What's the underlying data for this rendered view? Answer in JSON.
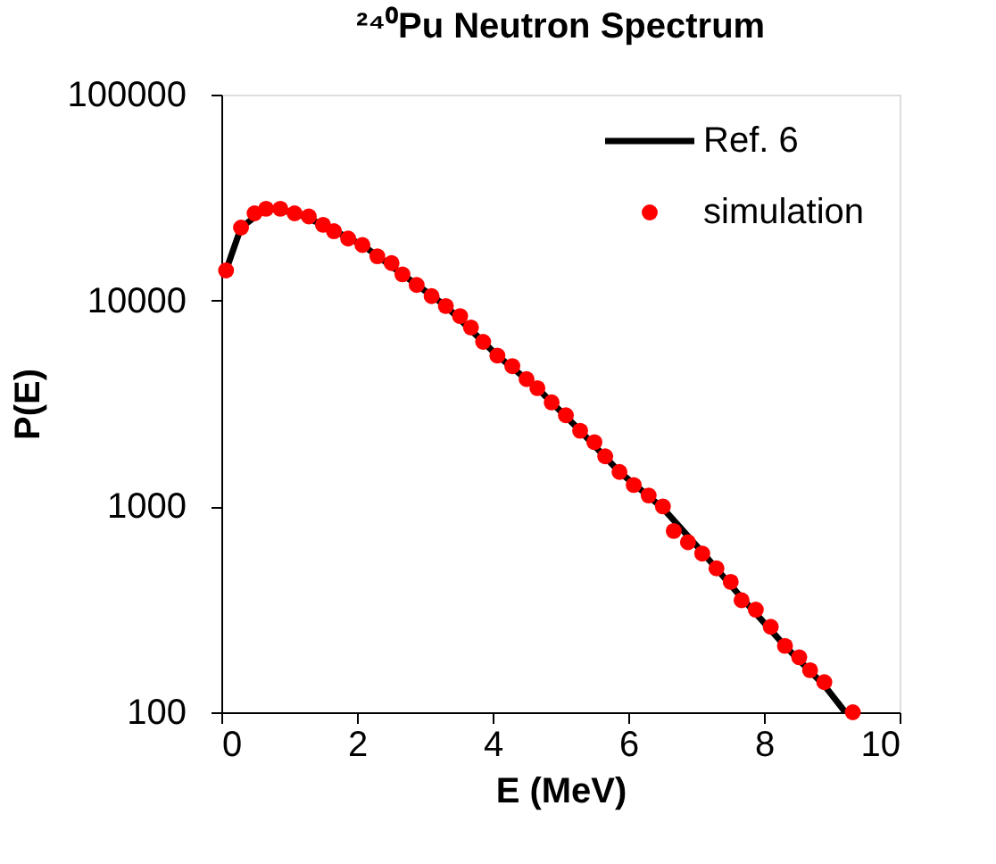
{
  "chart_data": {
    "type": "scatter",
    "title": "²⁴⁰Pu Neutron Spectrum",
    "xlabel": "E (MeV)",
    "ylabel": "P(E)",
    "xlim": [
      0,
      10
    ],
    "xticks": [
      0,
      2,
      4,
      6,
      8,
      10
    ],
    "ylim": [
      100,
      100000
    ],
    "yticks": [
      100,
      1000,
      10000,
      100000
    ],
    "log": "y",
    "grid": false,
    "legend": "top right",
    "series": [
      {
        "name": "Ref. 6",
        "type": "line",
        "color": "#000000",
        "marker": "none",
        "line_style": "solid",
        "x": [
          0.07,
          0.29,
          0.66,
          1.08,
          1.5,
          2.08,
          2.67,
          3.31,
          4.07,
          4.66,
          5.29,
          5.87,
          6.51,
          7.09,
          7.67,
          8.31,
          8.89,
          9.2
        ],
        "values": [
          14000,
          22600,
          28000,
          26800,
          23300,
          18600,
          13400,
          9400,
          5400,
          3750,
          2330,
          1470,
          980,
          600,
          360,
          210,
          135,
          100
        ]
      },
      {
        "name": "simulation",
        "color": "#ff0000",
        "marker": "circle",
        "x": [
          0.07,
          0.29,
          0.49,
          0.66,
          0.87,
          1.08,
          1.29,
          1.5,
          1.66,
          1.87,
          2.08,
          2.3,
          2.51,
          2.67,
          2.88,
          3.1,
          3.31,
          3.52,
          3.68,
          3.86,
          4.07,
          4.29,
          4.5,
          4.66,
          4.87,
          5.08,
          5.29,
          5.5,
          5.66,
          5.87,
          6.08,
          6.3,
          6.51,
          6.67,
          6.88,
          7.09,
          7.3,
          7.51,
          7.67,
          7.88,
          8.1,
          8.31,
          8.52,
          8.68,
          8.89,
          9.31
        ],
        "values": [
          14000,
          22600,
          26500,
          27900,
          27900,
          26500,
          25600,
          23300,
          21700,
          20000,
          18600,
          16400,
          15200,
          13400,
          11900,
          10500,
          9400,
          8400,
          7400,
          6300,
          5400,
          4800,
          4150,
          3750,
          3200,
          2770,
          2330,
          2050,
          1750,
          1470,
          1270,
          1130,
          1000,
          760,
          670,
          590,
          500,
          430,
          350,
          315,
          260,
          210,
          185,
          160,
          140,
          100
        ]
      }
    ]
  }
}
